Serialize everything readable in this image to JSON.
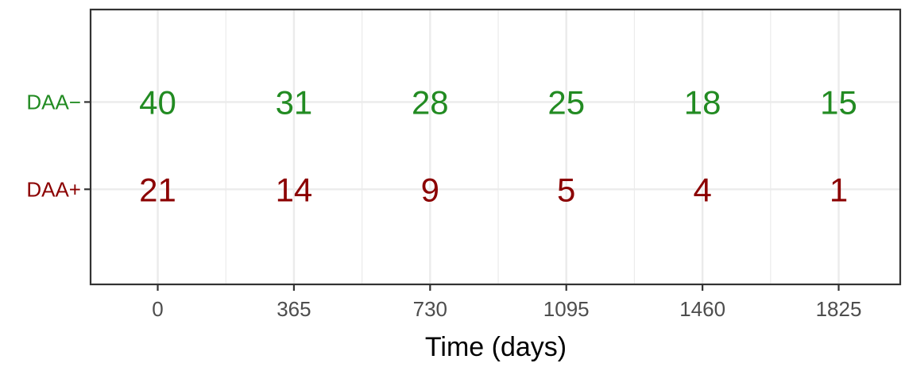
{
  "chart_data": {
    "type": "table",
    "xlabel": "Time (days)",
    "ylabel": "",
    "x_ticks": [
      0,
      365,
      730,
      1095,
      1460,
      1825
    ],
    "xlim": [
      -180,
      1990
    ],
    "grid": true,
    "rows": [
      {
        "name": "DAA−",
        "color": "#228b22",
        "values": [
          40,
          31,
          28,
          25,
          18,
          15
        ]
      },
      {
        "name": "DAA+",
        "color": "#8b0000",
        "values": [
          21,
          14,
          9,
          5,
          4,
          1
        ]
      }
    ]
  }
}
